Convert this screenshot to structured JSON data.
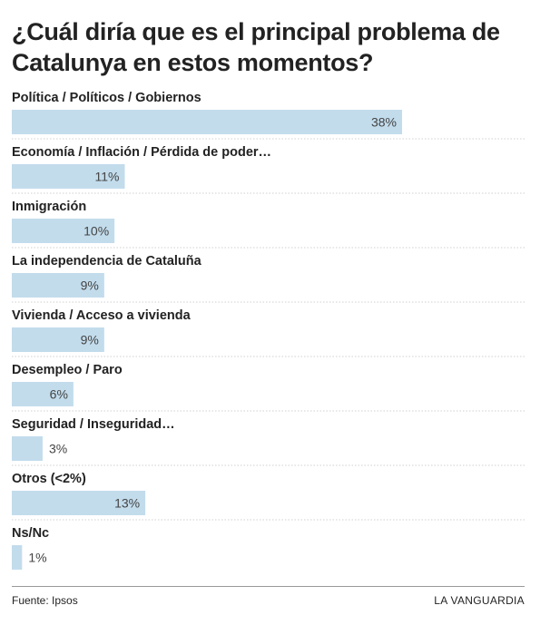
{
  "chart_data": {
    "type": "bar",
    "orientation": "horizontal",
    "title": "¿Cuál diría que es el principal problema de Catalunya en estos momentos?",
    "categories": [
      "Política / Políticos / Gobiernos",
      "Economía / Inflación / Pérdida de poder…",
      "Inmigración",
      "La independencia de Cataluña",
      "Vivienda / Acceso a vivienda",
      "Desempleo / Paro",
      "Seguridad / Inseguridad…",
      "Otros (<2%)",
      "Ns/Nc"
    ],
    "values": [
      38,
      11,
      10,
      9,
      9,
      6,
      3,
      13,
      1
    ],
    "value_labels": [
      "38%",
      "11%",
      "10%",
      "9%",
      "9%",
      "6%",
      "3%",
      "13%",
      "1%"
    ],
    "unit": "%",
    "xlim": [
      0,
      38
    ],
    "bar_color": "#c2dcec",
    "separator_color": "#d0d0d0"
  },
  "footer": {
    "source": "Fuente: Ipsos",
    "brand": "LA VANGUARDIA"
  }
}
